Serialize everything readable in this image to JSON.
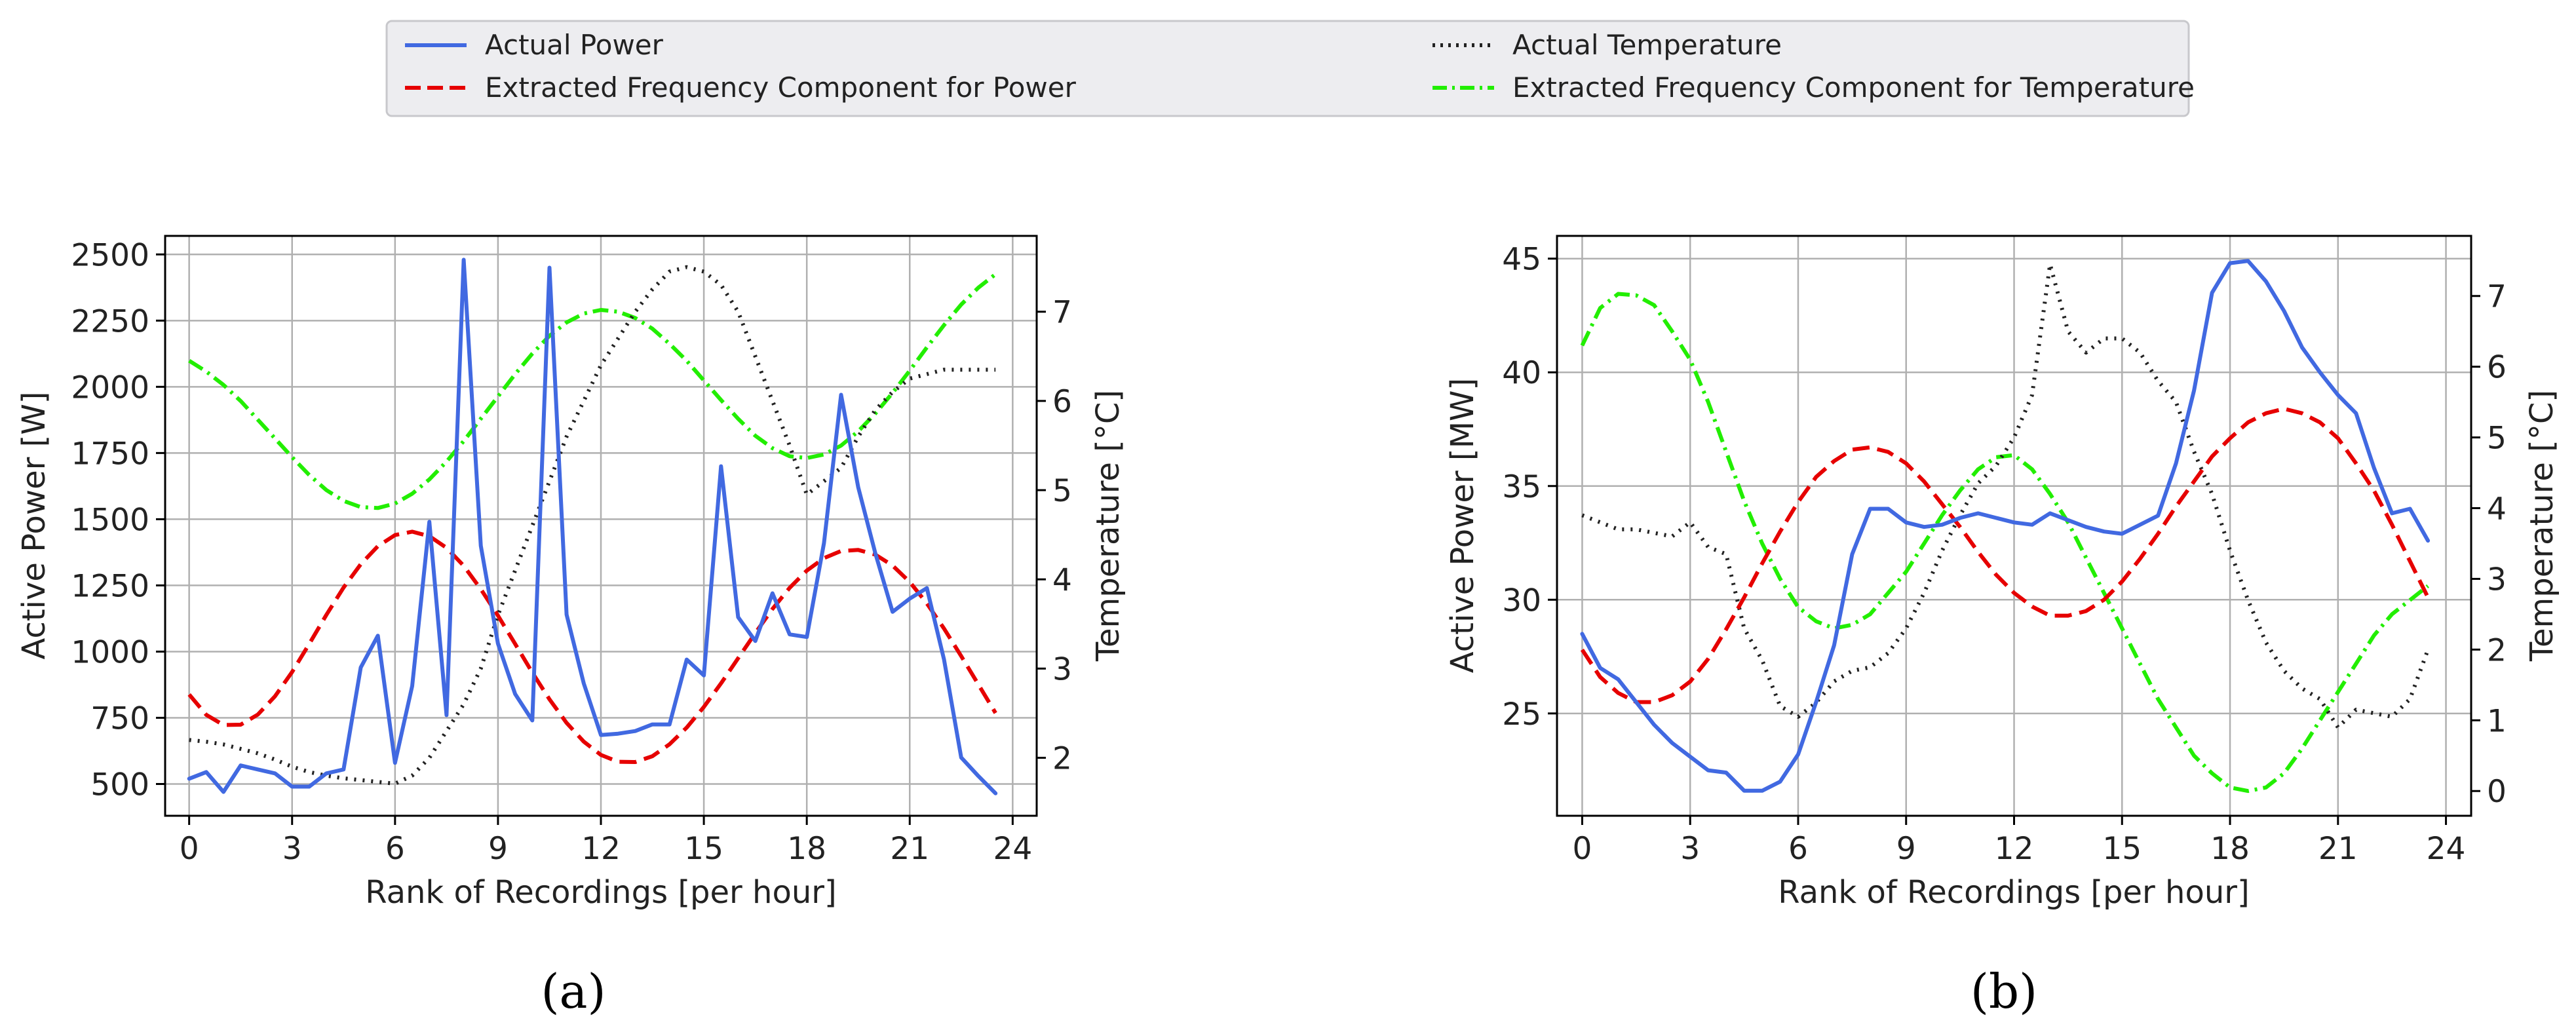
{
  "colors": {
    "actual_power": "#4169e1",
    "power_component": "#e60000",
    "actual_temperature": "#222222",
    "temperature_component": "#22ee00",
    "grid": "#b0b0b0",
    "axis": "#000000"
  },
  "legend": {
    "entries": [
      {
        "label": "Actual Power",
        "style": "solid",
        "color_key": "actual_power"
      },
      {
        "label": "Extracted Frequency Component for Power",
        "style": "dashed",
        "color_key": "power_component"
      },
      {
        "label": "Actual Temperature",
        "style": "dotted",
        "color_key": "actual_temperature"
      },
      {
        "label": "Extracted Frequency Component for Temperature",
        "style": "dashdot",
        "color_key": "temperature_component"
      }
    ]
  },
  "chart_data": [
    {
      "type": "line",
      "panel_label": "(a)",
      "xlabel": "Rank of Recordings [per hour]",
      "ylabel": "Active Power [W]",
      "y2label": "Temperature [°C]",
      "xlim": [
        -0.7,
        24.7
      ],
      "ylim": [
        380,
        2570
      ],
      "y2lim": [
        1.35,
        7.85
      ],
      "xticks": [
        0,
        3,
        6,
        9,
        12,
        15,
        18,
        21,
        24
      ],
      "yticks": [
        500,
        750,
        1000,
        1250,
        1500,
        1750,
        2000,
        2250,
        2500
      ],
      "y2ticks": [
        2,
        3,
        4,
        5,
        6,
        7
      ],
      "series": [
        {
          "name": "Actual Power",
          "axis": "left",
          "x": [
            0,
            0.5,
            1,
            1.5,
            2,
            2.5,
            3,
            3.5,
            4,
            4.5,
            5,
            5.5,
            6,
            6.5,
            7,
            7.5,
            8,
            8.5,
            9,
            9.5,
            10,
            10.5,
            11,
            11.5,
            12,
            12.5,
            13,
            13.5,
            14,
            14.5,
            15,
            15.5,
            16,
            16.5,
            17,
            17.5,
            18,
            18.5,
            19,
            19.5,
            20,
            20.5,
            21,
            21.5,
            22,
            22.5,
            23,
            23.5
          ],
          "values": [
            520,
            545,
            470,
            570,
            555,
            540,
            490,
            490,
            540,
            555,
            940,
            1060,
            580,
            870,
            1490,
            760,
            2480,
            1400,
            1030,
            840,
            740,
            2450,
            1140,
            880,
            685,
            690,
            700,
            725,
            725,
            970,
            910,
            1700,
            1130,
            1040,
            1220,
            1065,
            1055,
            1410,
            1970,
            1620,
            1370,
            1150,
            1200,
            1240,
            970,
            600,
            530,
            465
          ]
        },
        {
          "name": "Extracted Frequency Component for Power",
          "axis": "left",
          "x": [
            0,
            0.5,
            1,
            1.5,
            2,
            2.5,
            3,
            3.5,
            4,
            4.5,
            5,
            5.5,
            6,
            6.5,
            7,
            7.5,
            8,
            8.5,
            9,
            9.5,
            10,
            10.5,
            11,
            11.5,
            12,
            12.5,
            13,
            13.5,
            14,
            14.5,
            15,
            15.5,
            16,
            16.5,
            17,
            17.5,
            18,
            18.5,
            19,
            19.5,
            20,
            20.5,
            21,
            21.5,
            22,
            22.5,
            23,
            23.5
          ],
          "values": [
            838,
            761,
            723,
            724,
            762,
            831,
            923,
            1029,
            1139,
            1242,
            1330,
            1398,
            1440,
            1453,
            1436,
            1392,
            1324,
            1236,
            1136,
            1029,
            921,
            820,
            731,
            660,
            610,
            584,
            583,
            605,
            650,
            713,
            791,
            880,
            975,
            1070,
            1161,
            1241,
            1306,
            1353,
            1380,
            1384,
            1366,
            1325,
            1263,
            1182,
            1087,
            983,
            876,
            768
          ]
        },
        {
          "name": "Actual Temperature",
          "axis": "right",
          "x": [
            0,
            0.5,
            1,
            1.5,
            2,
            2.5,
            3,
            3.5,
            4,
            4.5,
            5,
            5.5,
            6,
            6.5,
            7,
            7.5,
            8,
            8.5,
            9,
            9.5,
            10,
            10.5,
            11,
            11.5,
            12,
            12.5,
            13,
            13.5,
            14,
            14.5,
            15,
            15.5,
            16,
            16.5,
            17,
            17.5,
            18,
            18.5,
            19,
            19.5,
            20,
            20.5,
            21,
            21.5,
            22,
            22.5,
            23,
            23.5
          ],
          "values": [
            2.2,
            2.18,
            2.15,
            2.1,
            2.05,
            1.98,
            1.9,
            1.84,
            1.8,
            1.77,
            1.75,
            1.73,
            1.71,
            1.8,
            2.0,
            2.3,
            2.6,
            3.0,
            3.6,
            4.1,
            4.6,
            5.1,
            5.6,
            6.0,
            6.4,
            6.7,
            7.0,
            7.25,
            7.45,
            7.5,
            7.45,
            7.3,
            7.0,
            6.5,
            6.0,
            5.5,
            4.95,
            5.1,
            5.25,
            5.6,
            5.9,
            6.1,
            6.25,
            6.3,
            6.35,
            6.35,
            6.35,
            6.35
          ]
        },
        {
          "name": "Extracted Frequency Component for Temperature",
          "axis": "right",
          "x": [
            0,
            0.5,
            1,
            1.5,
            2,
            2.5,
            3,
            3.5,
            4,
            4.5,
            5,
            5.5,
            6,
            6.5,
            7,
            7.5,
            8,
            8.5,
            9,
            9.5,
            10,
            10.5,
            11,
            11.5,
            12,
            12.5,
            13,
            13.5,
            14,
            14.5,
            15,
            15.5,
            16,
            16.5,
            17,
            17.5,
            18,
            18.5,
            19,
            19.5,
            20,
            20.5,
            21,
            21.5,
            22,
            22.5,
            23,
            23.5
          ],
          "values": [
            6.45,
            6.33,
            6.18,
            6.0,
            5.79,
            5.58,
            5.37,
            5.17,
            5.0,
            4.88,
            4.81,
            4.8,
            4.85,
            4.96,
            5.12,
            5.32,
            5.55,
            5.8,
            6.05,
            6.3,
            6.53,
            6.73,
            6.88,
            6.98,
            7.02,
            7.0,
            6.93,
            6.81,
            6.64,
            6.45,
            6.23,
            6.01,
            5.8,
            5.61,
            5.47,
            5.38,
            5.36,
            5.4,
            5.5,
            5.66,
            5.86,
            6.09,
            6.34,
            6.6,
            6.85,
            7.08,
            7.27,
            7.42
          ]
        }
      ]
    },
    {
      "type": "line",
      "panel_label": "(b)",
      "xlabel": "Rank of Recordings [per hour]",
      "ylabel": "Active Power [MW]",
      "y2label": "Temperature [°C]",
      "xlim": [
        -0.7,
        24.7
      ],
      "ylim": [
        20.5,
        46.0
      ],
      "y2lim": [
        -0.35,
        7.85
      ],
      "xticks": [
        0,
        3,
        6,
        9,
        12,
        15,
        18,
        21,
        24
      ],
      "yticks": [
        25,
        30,
        35,
        40,
        45
      ],
      "y2ticks": [
        0,
        1,
        2,
        3,
        4,
        5,
        6,
        7
      ],
      "series": [
        {
          "name": "Actual Power",
          "axis": "left",
          "x": [
            0,
            0.5,
            1,
            1.5,
            2,
            2.5,
            3,
            3.5,
            4,
            4.5,
            5,
            5.5,
            6,
            6.5,
            7,
            7.5,
            8,
            8.5,
            9,
            9.5,
            10,
            10.5,
            11,
            11.5,
            12,
            12.5,
            13,
            13.5,
            14,
            14.5,
            15,
            15.5,
            16,
            16.5,
            17,
            17.5,
            18,
            18.5,
            19,
            19.5,
            20,
            20.5,
            21,
            21.5,
            22,
            22.5,
            23,
            23.5
          ],
          "values": [
            28.5,
            27.0,
            26.5,
            25.5,
            24.5,
            23.7,
            23.1,
            22.5,
            22.4,
            21.6,
            21.6,
            22.0,
            23.2,
            25.5,
            28.0,
            32.0,
            34.0,
            34.0,
            33.4,
            33.2,
            33.3,
            33.6,
            33.8,
            33.6,
            33.4,
            33.3,
            33.8,
            33.5,
            33.2,
            33.0,
            32.9,
            33.3,
            33.7,
            36.0,
            39.2,
            43.5,
            44.8,
            44.9,
            44.0,
            42.7,
            41.1,
            40.0,
            39.0,
            38.2,
            35.8,
            33.8,
            34.0,
            32.6
          ]
        },
        {
          "name": "Extracted Frequency Component for Power",
          "axis": "left",
          "x": [
            0,
            0.5,
            1,
            1.5,
            2,
            2.5,
            3,
            3.5,
            4,
            4.5,
            5,
            5.5,
            6,
            6.5,
            7,
            7.5,
            8,
            8.5,
            9,
            9.5,
            10,
            10.5,
            11,
            11.5,
            12,
            12.5,
            13,
            13.5,
            14,
            14.5,
            15,
            15.5,
            16,
            16.5,
            17,
            17.5,
            18,
            18.5,
            19,
            19.5,
            20,
            20.5,
            21,
            21.5,
            22,
            22.5,
            23,
            23.5
          ],
          "values": [
            27.8,
            26.6,
            25.9,
            25.5,
            25.5,
            25.8,
            26.4,
            27.4,
            28.7,
            30.1,
            31.6,
            33.0,
            34.3,
            35.4,
            36.1,
            36.6,
            36.7,
            36.5,
            36.0,
            35.2,
            34.2,
            33.2,
            32.1,
            31.1,
            30.3,
            29.7,
            29.3,
            29.3,
            29.5,
            30.0,
            30.8,
            31.8,
            32.9,
            34.1,
            35.2,
            36.3,
            37.1,
            37.8,
            38.2,
            38.4,
            38.2,
            37.8,
            37.1,
            36.0,
            34.8,
            33.3,
            31.7,
            30.1
          ]
        },
        {
          "name": "Actual Temperature",
          "axis": "right",
          "x": [
            0,
            0.5,
            1,
            1.5,
            2,
            2.5,
            3,
            3.5,
            4,
            4.5,
            5,
            5.5,
            6,
            6.5,
            7,
            7.5,
            8,
            8.5,
            9,
            9.5,
            10,
            10.5,
            11,
            11.5,
            12,
            12.5,
            13,
            13.5,
            14,
            14.5,
            15,
            15.5,
            16,
            16.5,
            17,
            17.5,
            18,
            18.5,
            19,
            19.5,
            20,
            20.5,
            21,
            21.5,
            22,
            22.5,
            23,
            23.5
          ],
          "values": [
            3.9,
            3.8,
            3.7,
            3.7,
            3.65,
            3.6,
            3.8,
            3.45,
            3.35,
            2.3,
            1.85,
            1.2,
            1.05,
            1.25,
            1.55,
            1.7,
            1.75,
            1.95,
            2.3,
            2.8,
            3.4,
            3.9,
            4.35,
            4.6,
            5.0,
            5.6,
            7.45,
            6.5,
            6.2,
            6.4,
            6.4,
            6.2,
            5.8,
            5.5,
            4.8,
            4.2,
            3.4,
            2.7,
            2.1,
            1.7,
            1.45,
            1.3,
            0.9,
            1.15,
            1.1,
            1.05,
            1.3,
            2.0
          ]
        },
        {
          "name": "Extracted Frequency Component for Temperature",
          "axis": "right",
          "x": [
            0,
            0.5,
            1,
            1.5,
            2,
            2.5,
            3,
            3.5,
            4,
            4.5,
            5,
            5.5,
            6,
            6.5,
            7,
            7.5,
            8,
            8.5,
            9,
            9.5,
            10,
            10.5,
            11,
            11.5,
            12,
            12.5,
            13,
            13.5,
            14,
            14.5,
            15,
            15.5,
            16,
            16.5,
            17,
            17.5,
            18,
            18.5,
            19,
            19.5,
            20,
            20.5,
            21,
            21.5,
            22,
            22.5,
            23,
            23.5
          ],
          "values": [
            6.3,
            6.83,
            7.03,
            7.01,
            6.87,
            6.5,
            6.1,
            5.5,
            4.8,
            4.1,
            3.5,
            3.0,
            2.6,
            2.4,
            2.3,
            2.35,
            2.5,
            2.8,
            3.1,
            3.5,
            3.9,
            4.25,
            4.55,
            4.72,
            4.75,
            4.55,
            4.2,
            3.8,
            3.3,
            2.8,
            2.3,
            1.8,
            1.3,
            0.9,
            0.5,
            0.25,
            0.05,
            0.0,
            0.05,
            0.25,
            0.6,
            1.0,
            1.4,
            1.8,
            2.2,
            2.5,
            2.7,
            2.9
          ]
        }
      ]
    }
  ]
}
